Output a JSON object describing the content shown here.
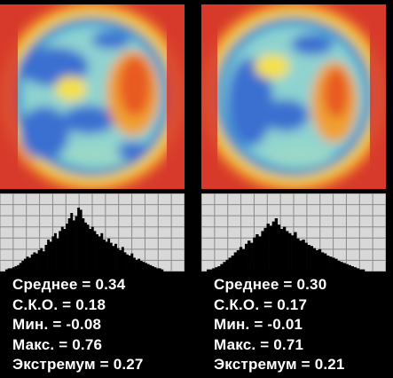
{
  "panels": [
    {
      "id": "left",
      "stats": {
        "mean": "Среднее = 0.34",
        "std": "С.К.О. = 0.18",
        "min": "Мин. = -0.08",
        "max": "Макс. = 0.76",
        "extremum": "Экстремум = 0.27"
      },
      "histogram": [
        2,
        3,
        3,
        4,
        5,
        6,
        8,
        10,
        12,
        14,
        13,
        16,
        18,
        17,
        20,
        22,
        19,
        25,
        30,
        28,
        33,
        36,
        31,
        38,
        42,
        40,
        45,
        50,
        55,
        48,
        52,
        60,
        58,
        50,
        46,
        44,
        40,
        42,
        38,
        35,
        33,
        36,
        30,
        28,
        31,
        27,
        24,
        26,
        22,
        20,
        23,
        18,
        16,
        15,
        17,
        13,
        11,
        12,
        10,
        9,
        8,
        7,
        6,
        5,
        4,
        3,
        3,
        2
      ]
    },
    {
      "id": "right",
      "stats": {
        "mean": "Среднее = 0.30",
        "std": "С.К.О. = 0.17",
        "min": "Мин. = -0.01",
        "max": "Макс. = 0.71",
        "extremum": "Экстремум = 0.21"
      },
      "histogram": [
        2,
        2,
        3,
        4,
        5,
        7,
        9,
        11,
        13,
        15,
        18,
        20,
        23,
        21,
        26,
        29,
        27,
        32,
        35,
        33,
        38,
        41,
        45,
        43,
        47,
        50,
        44,
        40,
        42,
        38,
        36,
        34,
        37,
        31,
        29,
        30,
        27,
        25,
        24,
        22,
        20,
        21,
        18,
        17,
        15,
        14,
        13,
        12,
        10,
        9,
        8,
        7,
        6,
        5,
        4,
        3,
        2,
        2
      ]
    }
  ],
  "colors": {
    "background": "#000000",
    "histogram_bg": "#d8d8d8",
    "histogram_grid": "#8a8a8a",
    "histogram_bars": "#000000",
    "text": "#ffffff"
  }
}
